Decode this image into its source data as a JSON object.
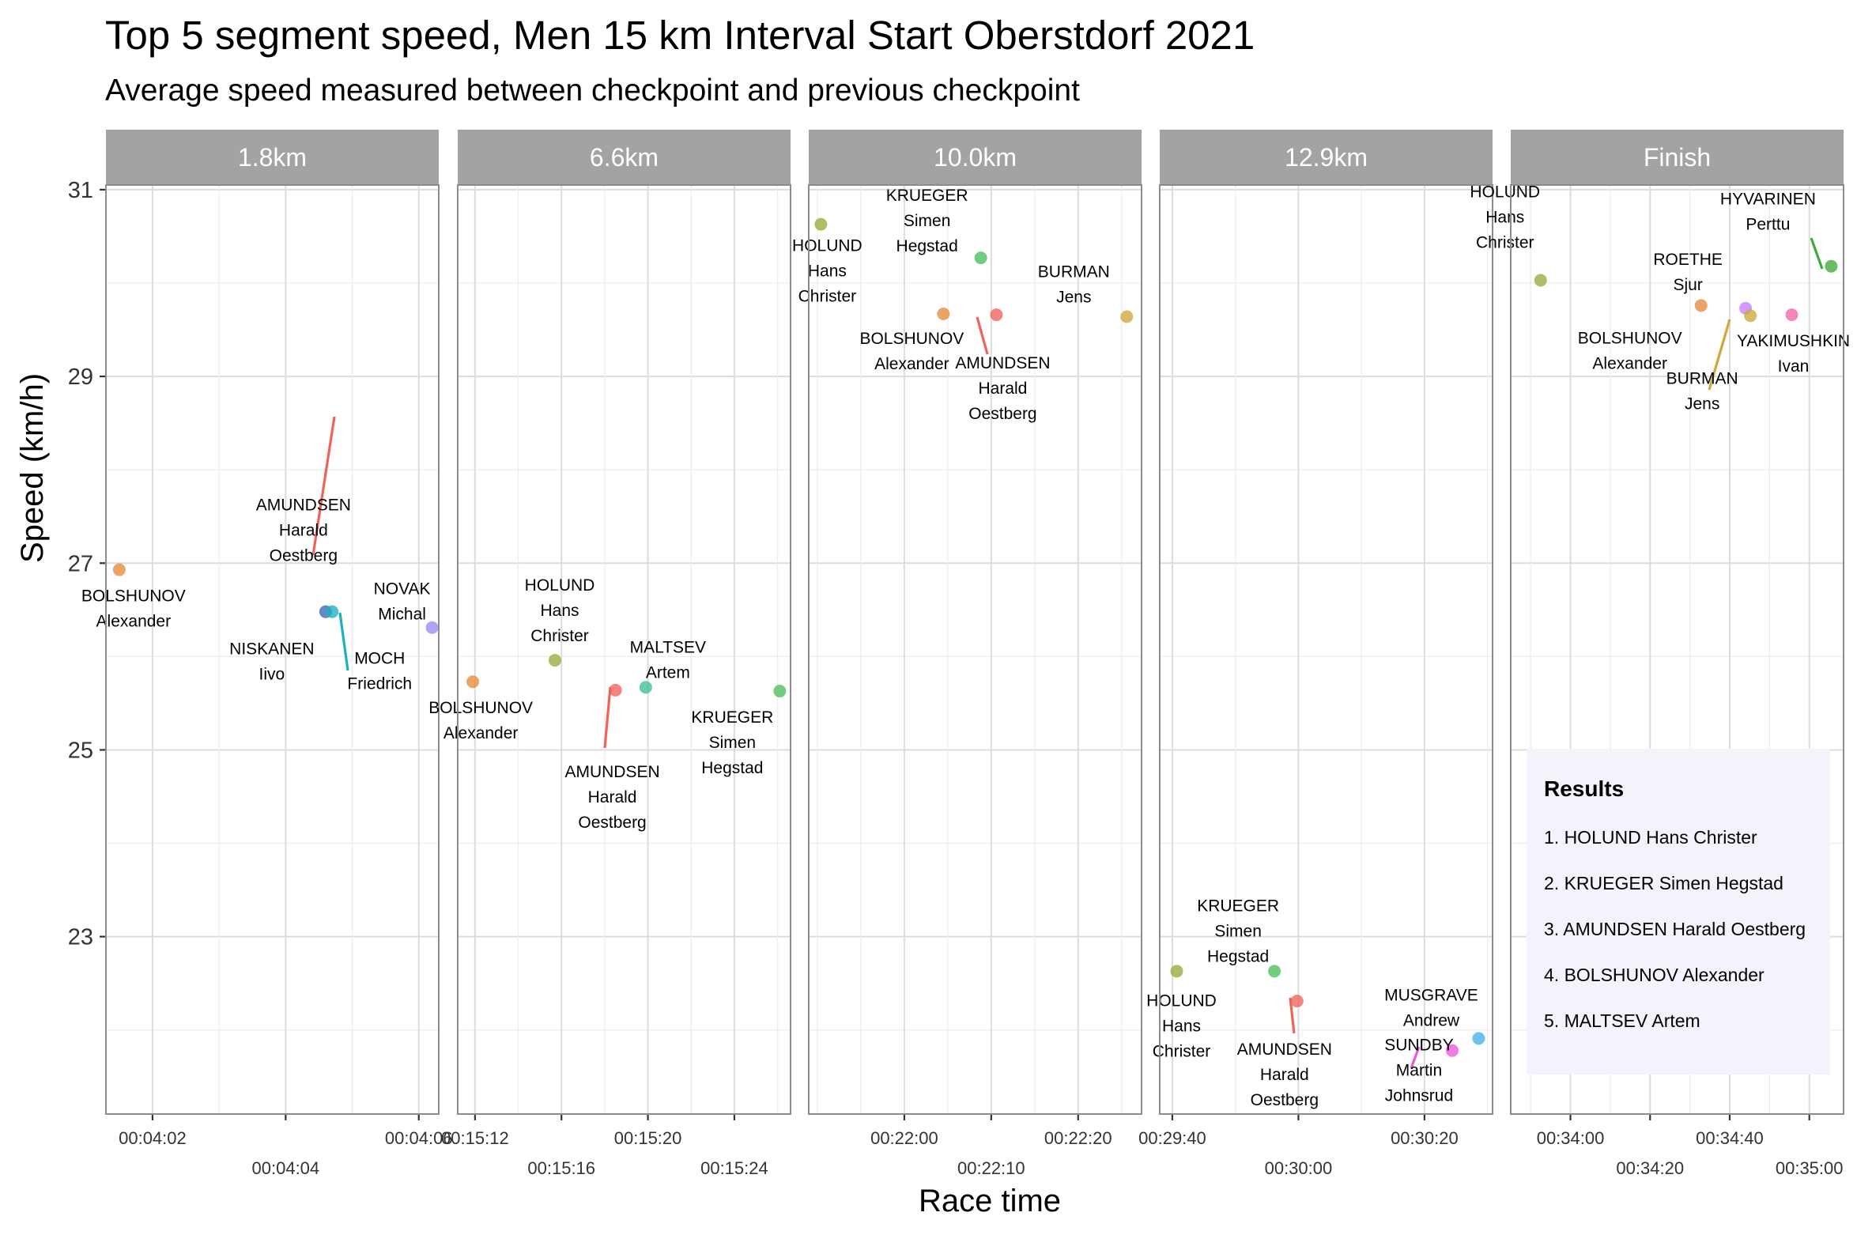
{
  "chart_data": {
    "type": "scatter",
    "title": "Top 5 segment speed, Men 15 km Interval Start Oberstdorf 2021",
    "subtitle": "Average speed measured between checkpoint and previous checkpoint",
    "xlabel": "Race time",
    "ylabel": "Speed (km/h)",
    "y_ticks": [
      23,
      25,
      27,
      29,
      31
    ],
    "ylim": [
      21.1,
      31.05
    ],
    "grid": true,
    "facets": [
      {
        "strip": "1.8km",
        "xlim": [
          "00:04:01.3",
          "00:04:06.3"
        ],
        "x_ticks": [
          "00:04:02",
          "00:04:04",
          "00:04:06"
        ],
        "points": [
          {
            "x": "00:04:01.5",
            "y": 26.93,
            "color": "#E58A3A",
            "label": [
              "BOLSHUNOV",
              "Alexander"
            ]
          },
          {
            "x": "00:04:04.6",
            "y": 26.48,
            "color": "#F0625A",
            "label": [
              "AMUNDSEN",
              "Harald",
              "Oestberg"
            ]
          },
          {
            "x": "00:04:04.6",
            "y": 26.48,
            "color": "#3C8AD9",
            "label": [
              "NISKANEN",
              "Iivo"
            ]
          },
          {
            "x": "00:04:04.7",
            "y": 26.48,
            "color": "#1CB1C2",
            "label": [
              "MOCH",
              "Friedrich"
            ]
          },
          {
            "x": "00:04:06.2",
            "y": 26.31,
            "color": "#9B8AF5",
            "label": [
              "NOVAK",
              "Michal"
            ]
          }
        ]
      },
      {
        "strip": "6.6km",
        "xlim": [
          "00:15:11.2",
          "00:15:26.6"
        ],
        "x_ticks": [
          "00:15:12",
          "00:15:16",
          "00:15:20",
          "00:15:24"
        ],
        "points": [
          {
            "x": "00:15:11.9",
            "y": 25.73,
            "color": "#E58A3A",
            "label": [
              "BOLSHUNOV",
              "Alexander"
            ]
          },
          {
            "x": "00:15:15.7",
            "y": 25.96,
            "color": "#9CA83A",
            "label": [
              "HOLUND",
              "Hans",
              "Christer"
            ]
          },
          {
            "x": "00:15:18.5",
            "y": 25.64,
            "color": "#F0625A",
            "label": [
              "AMUNDSEN",
              "Harald",
              "Oestberg"
            ]
          },
          {
            "x": "00:15:19.9",
            "y": 25.67,
            "color": "#3DBF95",
            "label": [
              "MALTSEV",
              "Artem"
            ]
          },
          {
            "x": "00:15:26.1",
            "y": 25.63,
            "color": "#4CBF5C",
            "label": [
              "KRUEGER",
              "Simen",
              "Hegstad"
            ]
          }
        ]
      },
      {
        "strip": "10.0km",
        "xlim": [
          "00:21:49.0",
          "00:22:27.3"
        ],
        "x_ticks": [
          "00:22:00",
          "00:22:10",
          "00:22:20"
        ],
        "points": [
          {
            "x": "00:21:50.4",
            "y": 30.63,
            "color": "#9CA83A",
            "label": [
              "HOLUND",
              "Hans",
              "Christer"
            ]
          },
          {
            "x": "00:22:04.5",
            "y": 29.67,
            "color": "#E58A3A",
            "label": [
              "BOLSHUNOV",
              "Alexander"
            ]
          },
          {
            "x": "00:22:08.8",
            "y": 30.27,
            "color": "#4CBF5C",
            "label": [
              "KRUEGER",
              "Simen",
              "Hegstad"
            ]
          },
          {
            "x": "00:22:10.6",
            "y": 29.66,
            "color": "#F0625A",
            "label": [
              "AMUNDSEN",
              "Harald",
              "Oestberg"
            ]
          },
          {
            "x": "00:22:25.6",
            "y": 29.64,
            "color": "#CFA83A",
            "label": [
              "BURMAN",
              "Jens"
            ]
          }
        ]
      },
      {
        "strip": "12.9km",
        "xlim": [
          "00:29:38.0",
          "00:30:30.8"
        ],
        "x_ticks": [
          "00:29:40",
          "00:30:00",
          "00:30:20"
        ],
        "points": [
          {
            "x": "00:29:40.7",
            "y": 22.63,
            "color": "#9CA83A",
            "label": [
              "HOLUND",
              "Hans",
              "Christer"
            ]
          },
          {
            "x": "00:29:56.2",
            "y": 22.63,
            "color": "#4CBF5C",
            "label": [
              "KRUEGER",
              "Simen",
              "Hegstad"
            ]
          },
          {
            "x": "00:29:59.8",
            "y": 22.31,
            "color": "#F0625A",
            "label": [
              "AMUNDSEN",
              "Harald",
              "Oestberg"
            ]
          },
          {
            "x": "00:30:24.4",
            "y": 21.78,
            "color": "#E85AD6",
            "label": [
              "SUNDBY",
              "Martin",
              "Johnsrud"
            ]
          },
          {
            "x": "00:30:28.6",
            "y": 21.91,
            "color": "#3FB3E6",
            "label": [
              "MUSGRAVE",
              "Andrew"
            ]
          }
        ]
      },
      {
        "strip": "Finish",
        "xlim": [
          "00:33:45.0",
          "00:35:08.6"
        ],
        "x_ticks": [
          "00:34:00",
          "00:34:20",
          "00:34:40",
          "00:35:00"
        ],
        "points": [
          {
            "x": "00:33:52.5",
            "y": 30.03,
            "color": "#9CA83A",
            "label": [
              "HOLUND",
              "Hans",
              "Christer"
            ]
          },
          {
            "x": "00:34:32.8",
            "y": 29.76,
            "color": "#E58A3A",
            "label": [
              "BOLSHUNOV",
              "Alexander"
            ]
          },
          {
            "x": "00:34:44.0",
            "y": 29.73,
            "color": "#C77CFF",
            "label": [
              "ROETHE",
              "Sjur"
            ]
          },
          {
            "x": "00:34:45.2",
            "y": 29.65,
            "color": "#CFA83A",
            "label": [
              "BURMAN",
              "Jens"
            ]
          },
          {
            "x": "00:34:55.6",
            "y": 29.66,
            "color": "#F065A8",
            "label": [
              "YAKIMUSHKIN",
              "Ivan"
            ]
          },
          {
            "x": "00:35:05.5",
            "y": 30.18,
            "color": "#3DAA3A",
            "label": [
              "HYVARINEN",
              "Perttu"
            ]
          }
        ]
      }
    ],
    "legend": {
      "placement": "bottom-right",
      "title": "Results",
      "items": [
        "1. HOLUND Hans Christer",
        "2. KRUEGER Simen Hegstad",
        "3. AMUNDSEN Harald Oestberg",
        "4. BOLSHUNOV Alexander",
        "5. MALTSEV Artem"
      ]
    }
  }
}
